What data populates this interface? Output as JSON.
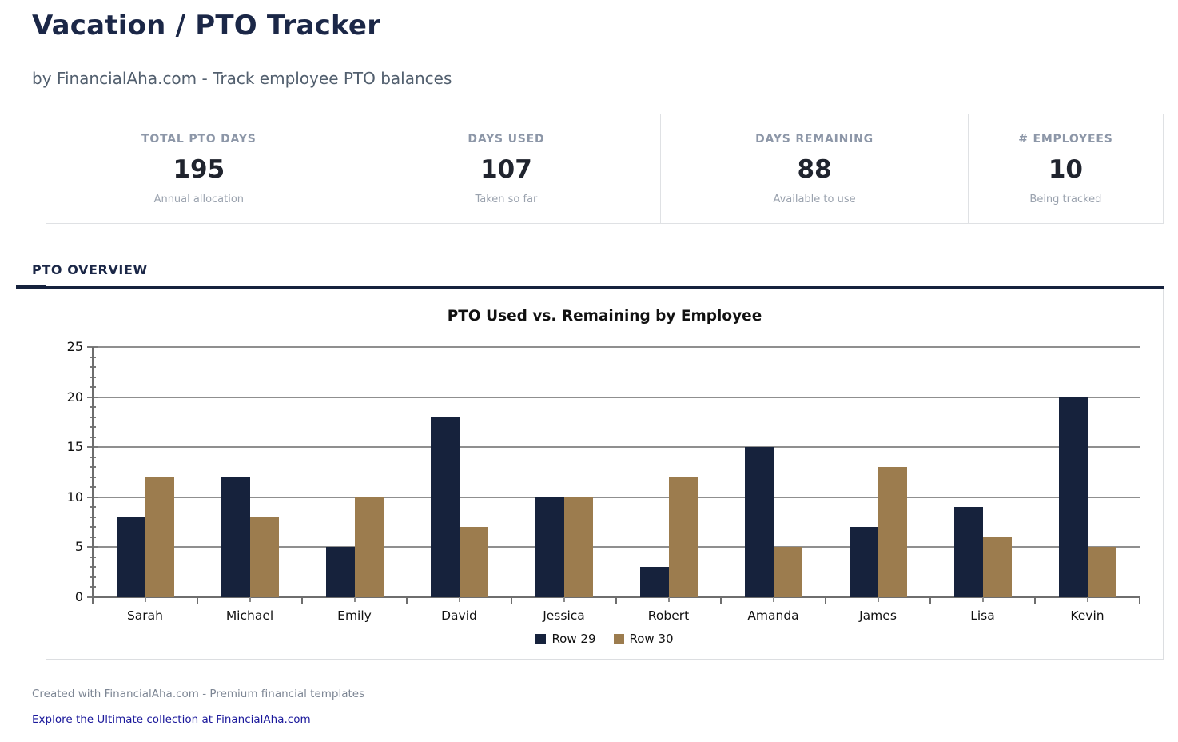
{
  "page": {
    "title": "Vacation / PTO Tracker",
    "subtitle": "by FinancialAha.com - Track employee PTO balances",
    "footer_note": "Created with FinancialAha.com - Premium financial templates",
    "footer_link": "Explore the Ultimate collection at FinancialAha.com"
  },
  "stats": [
    {
      "label": "TOTAL PTO DAYS",
      "value": "195",
      "sub": "Annual allocation"
    },
    {
      "label": "DAYS USED",
      "value": "107",
      "sub": "Taken so far"
    },
    {
      "label": "DAYS REMAINING",
      "value": "88",
      "sub": "Available to use"
    },
    {
      "label": "# EMPLOYEES",
      "value": "10",
      "sub": "Being tracked"
    }
  ],
  "section": {
    "heading": "PTO OVERVIEW"
  },
  "chart_data": {
    "type": "bar",
    "title": "PTO Used vs. Remaining by Employee",
    "categories": [
      "Sarah",
      "Michael",
      "Emily",
      "David",
      "Jessica",
      "Robert",
      "Amanda",
      "James",
      "Lisa",
      "Kevin"
    ],
    "series": [
      {
        "name": "Row 29",
        "color": "#16223c",
        "values": [
          8,
          12,
          5,
          18,
          10,
          3,
          15,
          7,
          9,
          20
        ]
      },
      {
        "name": "Row 30",
        "color": "#9c7c4e",
        "values": [
          12,
          8,
          10,
          7,
          10,
          12,
          5,
          13,
          6,
          5
        ]
      }
    ],
    "xlabel": "",
    "ylabel": "",
    "ylim": [
      0,
      25
    ],
    "yticks": [
      0,
      5,
      10,
      15,
      20,
      25
    ],
    "grid": true,
    "legend_position": "bottom"
  },
  "colors": {
    "accent_navy": "#16223d",
    "bar_navy": "#16223c",
    "bar_tan": "#9c7c4e",
    "grid_gray": "#8f8f8f",
    "link_blue": "#1a189b"
  }
}
